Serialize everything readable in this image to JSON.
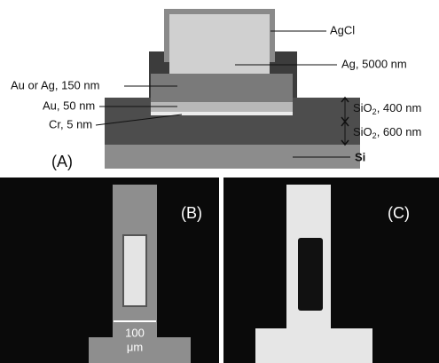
{
  "panel_a": {
    "label": "(A)",
    "layers": {
      "agcl": "AgCl",
      "ag": "Ag, 5000 nm",
      "au_ag": "Au or Ag, 150 nm",
      "au": "Au, 50 nm",
      "cr": "Cr, 5 nm",
      "sio2_upper": {
        "prefix": "SiO",
        "sub": "2",
        "suffix": ", 400 nm"
      },
      "sio2_lower": {
        "prefix": "SiO",
        "sub": "2",
        "suffix": ", 600 nm"
      },
      "si": "Si"
    }
  },
  "panel_b": {
    "label": "(B)",
    "scale_bar": [
      "100",
      "μm"
    ]
  },
  "panel_c": {
    "label": "(C)"
  }
}
